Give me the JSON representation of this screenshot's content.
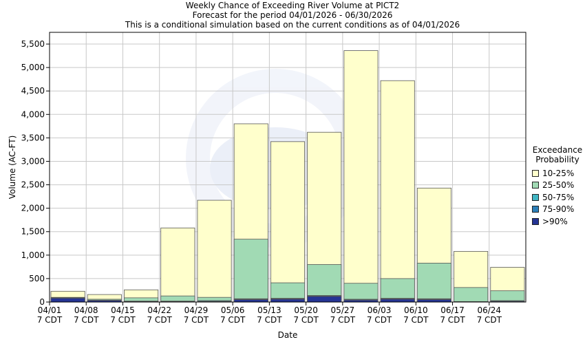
{
  "chart_data": {
    "type": "bar",
    "stacked": true,
    "title": "Weekly Chance of Exceeding River Volume at PICT2",
    "subtitle": "Forecast for the period 04/01/2026 - 06/30/2026",
    "subtitle2": "This is a conditional simulation based on the current conditions as of 04/01/2026",
    "xlabel": "Date",
    "ylabel": "Volume (AC-FT)",
    "ylim": [
      0,
      5750
    ],
    "yticks": [
      0,
      500,
      1000,
      1500,
      2000,
      2500,
      3000,
      3500,
      4000,
      4500,
      5000,
      5500
    ],
    "ytick_labels": [
      "0",
      "500",
      "1,000",
      "1,500",
      "2,000",
      "2,500",
      "3,000",
      "3,500",
      "4,000",
      "4,500",
      "5,000",
      "5,500"
    ],
    "x_tick_dates": [
      "04/01",
      "04/08",
      "04/15",
      "04/22",
      "04/29",
      "05/06",
      "05/13",
      "05/20",
      "05/27",
      "06/03",
      "06/10",
      "06/17",
      "06/24"
    ],
    "x_tick_time": "7 CDT",
    "grid": true,
    "legend_position": "right",
    "legend_title_lines": [
      "Exceedance",
      "Probability"
    ],
    "series": [
      {
        "name": "10-25%",
        "color": "#ffffcc",
        "values": [
          230,
          160,
          260,
          1580,
          2170,
          3800,
          3420,
          3620,
          5360,
          4720,
          2430,
          1080,
          740
        ]
      },
      {
        "name": "25-50%",
        "color": "#a1dab4",
        "values": [
          100,
          60,
          90,
          130,
          100,
          1340,
          410,
          800,
          400,
          500,
          830,
          310,
          240
        ]
      },
      {
        "name": "50-75%",
        "color": "#41b6c4",
        "values": [
          90,
          40,
          20,
          20,
          30,
          70,
          80,
          140,
          60,
          80,
          70,
          10,
          30
        ]
      },
      {
        "name": "75-90%",
        "color": "#2c7fb8",
        "values": [
          90,
          35,
          10,
          10,
          15,
          60,
          70,
          130,
          50,
          70,
          60,
          8,
          20
        ]
      },
      {
        "name": ">90%",
        "color": "#253494",
        "values": [
          80,
          30,
          5,
          5,
          10,
          50,
          60,
          120,
          40,
          60,
          50,
          5,
          15
        ]
      }
    ]
  }
}
